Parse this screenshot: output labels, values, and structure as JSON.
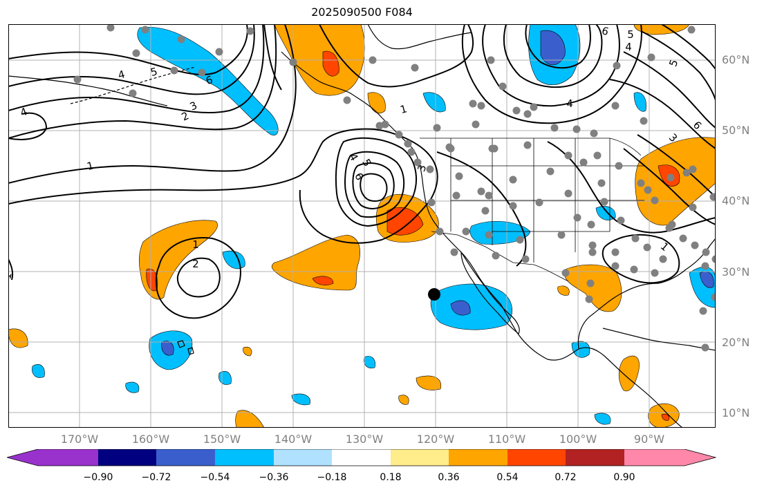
{
  "title": "2025090500 F084",
  "lat_labels": [
    "60°N",
    "50°N",
    "40°N",
    "30°N",
    "20°N",
    "10°N"
  ],
  "lon_labels": [
    "170°W",
    "160°W",
    "150°W",
    "140°W",
    "130°W",
    "120°W",
    "110°W",
    "100°W",
    "90°W"
  ],
  "colorbar": {
    "colors": [
      "#9932cc",
      "#000080",
      "#3a5fcd",
      "#00bfff",
      "#b0e2ff",
      "#ffffff",
      "#ffec8b",
      "#ffa500",
      "#ff4500",
      "#b22222",
      "#ff88aa"
    ],
    "ticks": [
      "−0.90",
      "−0.72",
      "−0.54",
      "−0.36",
      "−0.18",
      "0.18",
      "0.36",
      "0.54",
      "0.72",
      "0.90"
    ]
  },
  "contour_labels": [
    "4",
    "5",
    "6",
    "4",
    "3",
    "2",
    "1",
    "1",
    "2",
    "4",
    "5",
    "6",
    "3",
    "1",
    "6",
    "5",
    "4",
    "6",
    "5",
    "4",
    "3",
    "1",
    "1"
  ],
  "colors": {
    "land": "#000000",
    "grid": "#b0b0b0",
    "contour": "#000000",
    "station": "#808080"
  }
}
